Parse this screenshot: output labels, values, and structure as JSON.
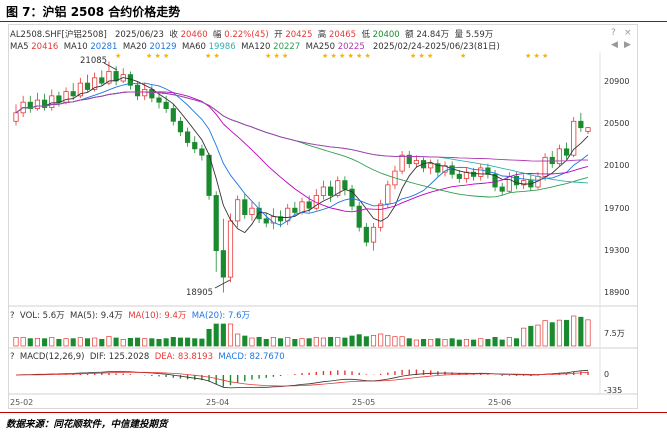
{
  "title": "图 7：沪铝 2508 合约价格走势",
  "header1": {
    "symbol": "AL2508.SHF[沪铝2508]",
    "date": "2025/06/23",
    "close_label": "收",
    "close": "20460",
    "chg_label": "幅",
    "chg": "0.22%(45)",
    "open_label": "开",
    "open": "20425",
    "high_label": "高",
    "high": "20465",
    "low_label": "低",
    "low": "20400",
    "amt_label": "额",
    "amt": "24.84万",
    "vol_label": "量",
    "vol": "5.59万"
  },
  "header2": {
    "ma5": "MA5",
    "ma5_v": "20416",
    "ma10": "MA10",
    "ma10_v": "20281",
    "ma20": "MA20",
    "ma20_v": "20129",
    "ma60": "MA60",
    "ma60_v": "19986",
    "ma120": "MA120",
    "ma120_v": "20227",
    "ma250": "MA250",
    "ma250_v": "20225",
    "range": "2025/02/24-2025/06/23(81日)"
  },
  "controls": {
    "question": "?",
    "close": "×",
    "left": "◀",
    "right": "▶"
  },
  "price_axis": [
    "20900",
    "20500",
    "20100",
    "19700",
    "19300",
    "18900"
  ],
  "annotations": {
    "high": "21085",
    "low": "18905"
  },
  "vol_header": {
    "q": "?",
    "vol": "VOL: 5.6万",
    "ma5": "MA(5): 9.4万",
    "ma10": "MA(10): 9.4万",
    "ma20": "MA(20): 7.6万"
  },
  "vol_axis": [
    "7.5万"
  ],
  "macd_header": {
    "q": "?",
    "macd": "MACD(12,26,9)",
    "dif": "DIF: 125.2028",
    "dea": "DEA: 83.8193",
    "macdv": "MACD: 82.7670"
  },
  "macd_axis": [
    "0",
    "-335"
  ],
  "x_axis": [
    "25-02",
    "25-04",
    "25-05",
    "25-06"
  ],
  "source": "数据来源：同花顺软件，中信建投期货",
  "colors": {
    "up": "#e53935",
    "down": "#1b8a2e",
    "ma5": "#333333",
    "ma10": "#1f77e0",
    "ma20": "#c000c0",
    "ma60": "#2e9e4f",
    "ma120": "#35b0b0",
    "ma250": "#b03ab0",
    "accent": "#c00000"
  }
}
